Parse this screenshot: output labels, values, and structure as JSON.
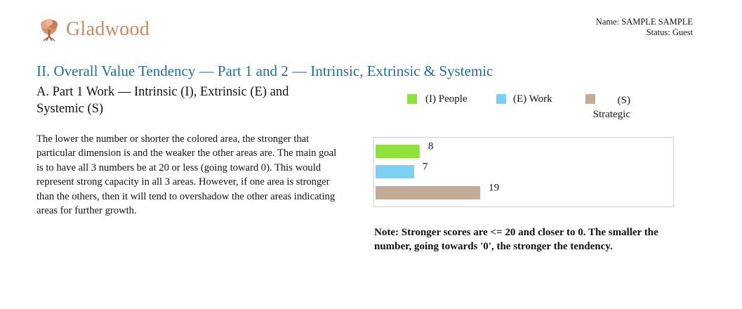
{
  "header": {
    "logo_text": "Gladwood",
    "logo_icon": "tree-icon",
    "name_line": "Name: SAMPLE SAMPLE",
    "status_line": "Status: Guest"
  },
  "section": {
    "title": "II. Overall Value Tendency — Part 1 and 2 — Intrinsic, Extrinsic & Systemic"
  },
  "subsection": {
    "title": "A. Part 1 Work — Intrinsic (I), Extrinsic (E) and Systemic (S)"
  },
  "description": "The lower the number or shorter the colored area, the stronger that particular dimension is and the weaker the other areas are. The main goal is to have all 3 numbers be at 20 or less (going toward 0). This would represent strong capacity in all 3 areas. However, if one area is stronger than the others, then it will tend to overshadow the other areas indicating areas for further growth.",
  "legend": [
    {
      "label": "(I) People",
      "color": "#8fe23a"
    },
    {
      "label": "(E) Work",
      "color": "#7dd0f5"
    },
    {
      "label": "(S) Strategic",
      "color": "#c4ab98"
    }
  ],
  "chart_data": {
    "type": "bar",
    "orientation": "horizontal",
    "categories": [
      "(I) People",
      "(E) Work",
      "(S) Strategic"
    ],
    "values": [
      8,
      7,
      19
    ],
    "colors": [
      "#8fe23a",
      "#7dd0f5",
      "#c4ab98"
    ],
    "data_labels": [
      "8",
      "7",
      "19"
    ],
    "xlim": [
      0,
      54
    ],
    "grid": false
  },
  "note": "Note: Stronger scores are <= 20 and closer to 0. The smaller the number, going towards '0', the stronger the tendency."
}
